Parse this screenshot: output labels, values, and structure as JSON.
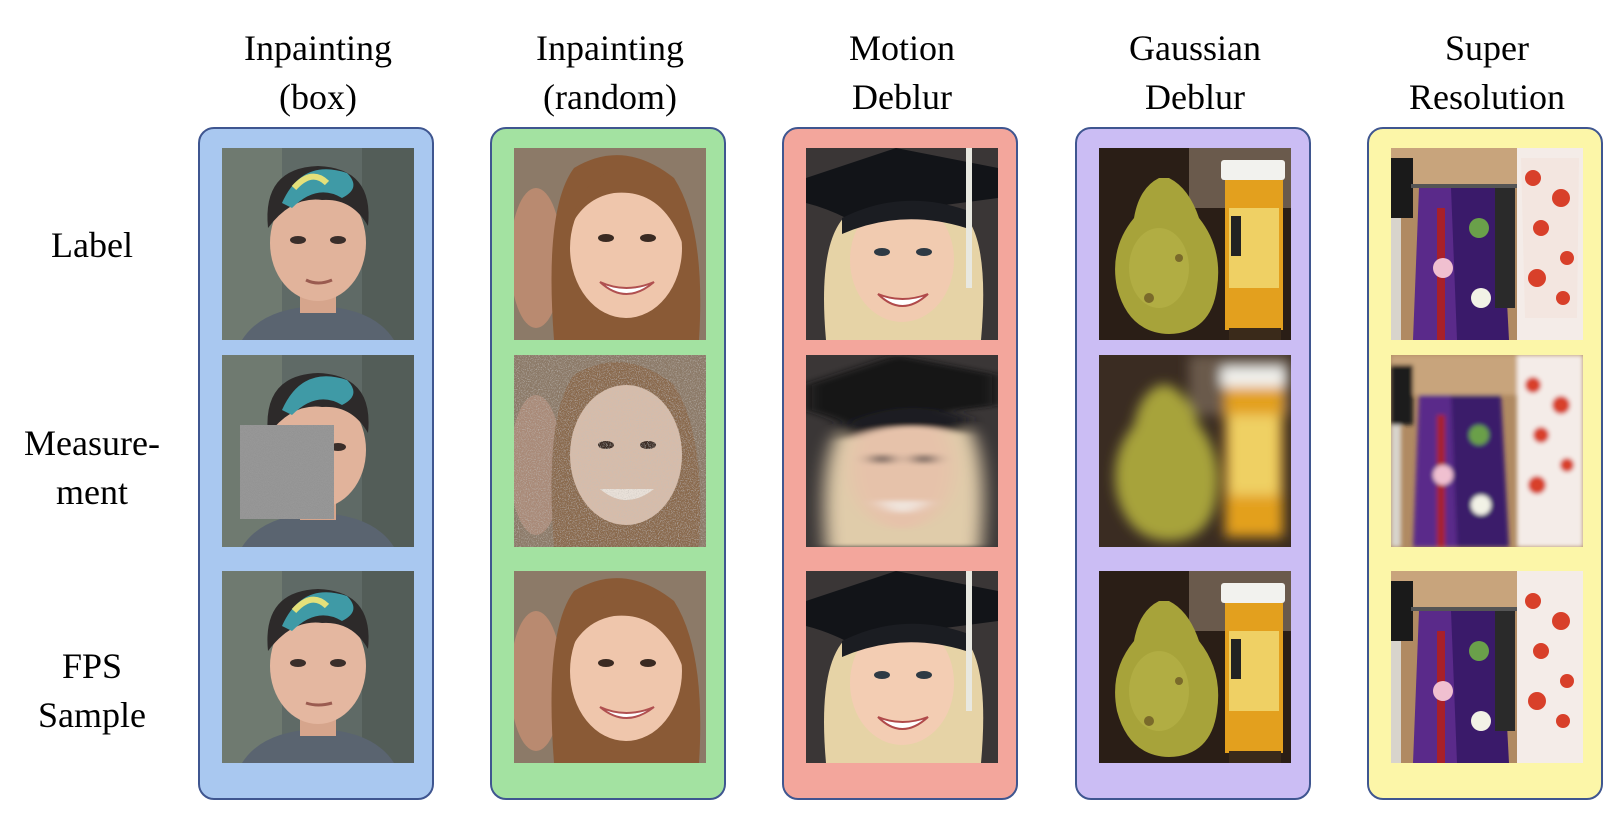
{
  "columns": [
    {
      "title_line1": "Inpainting",
      "title_line2": "(box)",
      "color": "#a9c8f0"
    },
    {
      "title_line1": "Inpainting",
      "title_line2": "(random)",
      "color": "#a3e2a1"
    },
    {
      "title_line1": "Motion",
      "title_line2": "Deblur",
      "color": "#f3a69c"
    },
    {
      "title_line1": "Gaussian",
      "title_line2": "Deblur",
      "color": "#cbbdf4"
    },
    {
      "title_line1": "Super",
      "title_line2": "Resolution",
      "color": "#fcf6a8"
    }
  ],
  "rows": [
    {
      "line1": "Label",
      "line2": ""
    },
    {
      "line1": "Measure-",
      "line2": "ment"
    },
    {
      "line1": "FPS",
      "line2": "Sample"
    }
  ]
}
